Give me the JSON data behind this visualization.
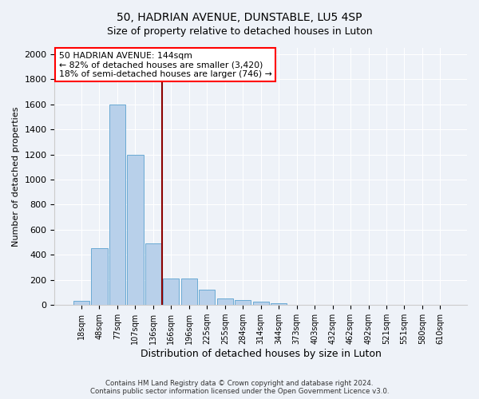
{
  "title": "50, HADRIAN AVENUE, DUNSTABLE, LU5 4SP",
  "subtitle": "Size of property relative to detached houses in Luton",
  "xlabel": "Distribution of detached houses by size in Luton",
  "ylabel": "Number of detached properties",
  "bin_labels": [
    "18sqm",
    "48sqm",
    "77sqm",
    "107sqm",
    "136sqm",
    "166sqm",
    "196sqm",
    "225sqm",
    "255sqm",
    "284sqm",
    "314sqm",
    "344sqm",
    "373sqm",
    "403sqm",
    "432sqm",
    "462sqm",
    "492sqm",
    "521sqm",
    "551sqm",
    "580sqm",
    "610sqm"
  ],
  "bar_values": [
    35,
    455,
    1600,
    1200,
    490,
    210,
    210,
    125,
    50,
    40,
    25,
    15,
    0,
    0,
    0,
    0,
    0,
    0,
    0,
    0,
    0
  ],
  "bar_color": "#b8d0ea",
  "bar_edgecolor": "#6aaad4",
  "vline_color": "#8b0000",
  "annotation_lines": [
    "50 HADRIAN AVENUE: 144sqm",
    "← 82% of detached houses are smaller (3,420)",
    "18% of semi-detached houses are larger (746) →"
  ],
  "ylim": [
    0,
    2050
  ],
  "yticks": [
    0,
    200,
    400,
    600,
    800,
    1000,
    1200,
    1400,
    1600,
    1800,
    2000
  ],
  "footer_line1": "Contains HM Land Registry data © Crown copyright and database right 2024.",
  "footer_line2": "Contains public sector information licensed under the Open Government Licence v3.0.",
  "background_color": "#eef2f8",
  "plot_background": "#eef2f8",
  "title_fontsize": 10,
  "subtitle_fontsize": 9
}
